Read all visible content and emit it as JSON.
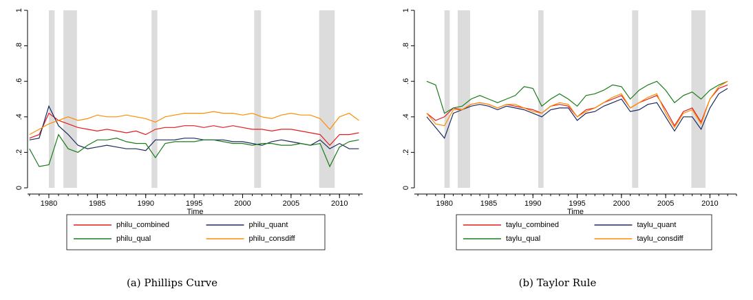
{
  "chart_data": [
    {
      "type": "line",
      "caption": "(a) Phillips Curve",
      "x_label": "Time",
      "x": [
        1978,
        1979,
        1980,
        1981,
        1982,
        1983,
        1984,
        1985,
        1986,
        1987,
        1988,
        1989,
        1990,
        1991,
        1992,
        1993,
        1994,
        1995,
        1996,
        1997,
        1998,
        1999,
        2000,
        2001,
        2002,
        2003,
        2004,
        2005,
        2006,
        2007,
        2008,
        2009,
        2010,
        2011,
        2012
      ],
      "xlim": [
        1977.8,
        2012.4
      ],
      "xticks": [
        1980,
        1985,
        1990,
        1995,
        2000,
        2005,
        2010
      ],
      "ylim": [
        0,
        1
      ],
      "yticks": [
        0,
        {
          "value": 0.2,
          "label": ".2"
        },
        {
          "value": 0.4,
          "label": ".4"
        },
        {
          "value": 0.6,
          "label": ".6"
        },
        {
          "value": 0.8,
          "label": ".8"
        },
        1
      ],
      "shaded_periods": [
        [
          1980.0,
          1980.6
        ],
        [
          1981.5,
          1982.9
        ],
        [
          1990.6,
          1991.2
        ],
        [
          2001.2,
          2001.9
        ],
        [
          2007.9,
          2009.5
        ]
      ],
      "series": [
        {
          "name": "philu_combined",
          "color": "#e41a1c",
          "values": [
            0.28,
            0.3,
            0.42,
            0.38,
            0.36,
            0.34,
            0.33,
            0.32,
            0.33,
            0.32,
            0.31,
            0.32,
            0.3,
            0.33,
            0.34,
            0.34,
            0.35,
            0.35,
            0.34,
            0.35,
            0.34,
            0.35,
            0.34,
            0.33,
            0.33,
            0.32,
            0.33,
            0.33,
            0.32,
            0.31,
            0.3,
            0.24,
            0.3,
            0.3,
            0.31
          ]
        },
        {
          "name": "philu_quant",
          "color": "#1a2a5e",
          "values": [
            0.27,
            0.28,
            0.46,
            0.35,
            0.3,
            0.24,
            0.22,
            0.23,
            0.24,
            0.23,
            0.22,
            0.22,
            0.21,
            0.27,
            0.27,
            0.27,
            0.28,
            0.28,
            0.27,
            0.27,
            0.27,
            0.26,
            0.26,
            0.25,
            0.24,
            0.26,
            0.27,
            0.26,
            0.25,
            0.24,
            0.27,
            0.22,
            0.25,
            0.22,
            0.22
          ]
        },
        {
          "name": "philu_qual",
          "color": "#1a7a1a",
          "values": [
            0.22,
            0.12,
            0.13,
            0.3,
            0.22,
            0.2,
            0.24,
            0.27,
            0.27,
            0.28,
            0.26,
            0.25,
            0.25,
            0.17,
            0.25,
            0.26,
            0.26,
            0.26,
            0.27,
            0.27,
            0.26,
            0.25,
            0.25,
            0.24,
            0.25,
            0.25,
            0.24,
            0.24,
            0.25,
            0.24,
            0.25,
            0.12,
            0.23,
            0.26,
            0.27
          ]
        },
        {
          "name": "philu_consdiff",
          "color": "#ff8c00",
          "values": [
            0.3,
            0.33,
            0.36,
            0.38,
            0.4,
            0.38,
            0.39,
            0.41,
            0.4,
            0.4,
            0.41,
            0.4,
            0.39,
            0.37,
            0.4,
            0.41,
            0.42,
            0.42,
            0.42,
            0.43,
            0.42,
            0.42,
            0.41,
            0.42,
            0.4,
            0.39,
            0.41,
            0.42,
            0.41,
            0.41,
            0.39,
            0.33,
            0.4,
            0.42,
            0.38
          ]
        }
      ]
    },
    {
      "type": "line",
      "caption": "(b) Taylor Rule",
      "x_label": "Time",
      "x": [
        1978,
        1979,
        1980,
        1981,
        1982,
        1983,
        1984,
        1985,
        1986,
        1987,
        1988,
        1989,
        1990,
        1991,
        1992,
        1993,
        1994,
        1995,
        1996,
        1997,
        1998,
        1999,
        2000,
        2001,
        2002,
        2003,
        2004,
        2005,
        2006,
        2007,
        2008,
        2009,
        2010,
        2011,
        2012
      ],
      "xlim": [
        1976.6,
        2013.0
      ],
      "xticks": [
        1980,
        1985,
        1990,
        1995,
        2000,
        2005,
        2010
      ],
      "ylim": [
        0,
        1
      ],
      "yticks": [
        0,
        {
          "value": 0.2,
          "label": ".2"
        },
        {
          "value": 0.4,
          "label": ".4"
        },
        {
          "value": 0.6,
          "label": ".6"
        },
        {
          "value": 0.8,
          "label": ".8"
        },
        1
      ],
      "shaded_periods": [
        [
          1980.0,
          1980.6
        ],
        [
          1981.5,
          1982.9
        ],
        [
          1990.6,
          1991.2
        ],
        [
          2001.2,
          2001.9
        ],
        [
          2007.9,
          2009.5
        ]
      ],
      "series": [
        {
          "name": "taylu_combined",
          "color": "#e41a1c",
          "values": [
            0.42,
            0.38,
            0.4,
            0.45,
            0.44,
            0.47,
            0.48,
            0.47,
            0.45,
            0.47,
            0.46,
            0.45,
            0.44,
            0.42,
            0.46,
            0.47,
            0.46,
            0.4,
            0.44,
            0.45,
            0.48,
            0.5,
            0.52,
            0.45,
            0.48,
            0.5,
            0.52,
            0.44,
            0.35,
            0.43,
            0.45,
            0.37,
            0.5,
            0.56,
            0.58
          ]
        },
        {
          "name": "taylu_quant",
          "color": "#1a2a5e",
          "values": [
            0.4,
            0.34,
            0.28,
            0.42,
            0.44,
            0.46,
            0.47,
            0.46,
            0.44,
            0.46,
            0.45,
            0.44,
            0.42,
            0.4,
            0.44,
            0.45,
            0.45,
            0.38,
            0.42,
            0.43,
            0.46,
            0.48,
            0.5,
            0.43,
            0.44,
            0.47,
            0.48,
            0.4,
            0.32,
            0.4,
            0.4,
            0.33,
            0.45,
            0.53,
            0.56
          ]
        },
        {
          "name": "taylu_qual",
          "color": "#1a7a1a",
          "values": [
            0.6,
            0.58,
            0.42,
            0.45,
            0.46,
            0.5,
            0.52,
            0.5,
            0.48,
            0.5,
            0.52,
            0.57,
            0.56,
            0.46,
            0.5,
            0.53,
            0.5,
            0.46,
            0.52,
            0.53,
            0.55,
            0.58,
            0.57,
            0.5,
            0.55,
            0.58,
            0.6,
            0.55,
            0.48,
            0.52,
            0.54,
            0.5,
            0.55,
            0.58,
            0.6
          ]
        },
        {
          "name": "taylu_consdiff",
          "color": "#ff8c00",
          "values": [
            0.42,
            0.36,
            0.35,
            0.44,
            0.44,
            0.47,
            0.48,
            0.47,
            0.45,
            0.47,
            0.47,
            0.45,
            0.43,
            0.42,
            0.46,
            0.48,
            0.47,
            0.4,
            0.43,
            0.45,
            0.48,
            0.51,
            0.53,
            0.45,
            0.48,
            0.51,
            0.53,
            0.42,
            0.34,
            0.42,
            0.44,
            0.36,
            0.5,
            0.57,
            0.6
          ]
        }
      ]
    }
  ]
}
